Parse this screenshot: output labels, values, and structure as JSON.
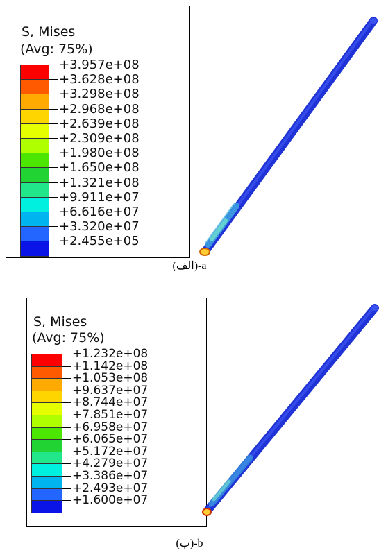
{
  "figures": [
    {
      "id": "a",
      "legend": {
        "title_line1": "S, Mises",
        "title_line2": "(Avg: 75%)",
        "colors": [
          "#ff0000",
          "#ff5a00",
          "#ffaa00",
          "#ffd500",
          "#e6ff00",
          "#b0ff00",
          "#4de600",
          "#22d433",
          "#22e68a",
          "#00f0e0",
          "#00b4f0",
          "#2266ff",
          "#0a14e6"
        ],
        "values": [
          "+3.957e+08",
          "+3.628e+08",
          "+3.298e+08",
          "+2.968e+08",
          "+2.639e+08",
          "+2.309e+08",
          "+1.980e+08",
          "+1.650e+08",
          "+1.321e+08",
          "+9.911e+07",
          "+6.616e+07",
          "+3.320e+07",
          "+2.455e+05"
        ]
      },
      "caption": "(الف)-a"
    },
    {
      "id": "b",
      "legend": {
        "title_line1": "S, Mises",
        "title_line2": "(Avg: 75%)",
        "colors": [
          "#ff0000",
          "#ff5a00",
          "#ffaa00",
          "#ffd500",
          "#e6ff00",
          "#b0ff00",
          "#4de600",
          "#22d433",
          "#22e68a",
          "#00f0e0",
          "#00b4f0",
          "#2266ff",
          "#0a14e6"
        ],
        "values": [
          "+1.232e+08",
          "+1.142e+08",
          "+1.053e+08",
          "+9.637e+07",
          "+8.744e+07",
          "+7.851e+07",
          "+6.958e+07",
          "+6.065e+07",
          "+5.172e+07",
          "+4.279e+07",
          "+3.386e+07",
          "+2.493e+07",
          "+1.600e+07"
        ]
      },
      "caption": "(ب)-b"
    }
  ]
}
